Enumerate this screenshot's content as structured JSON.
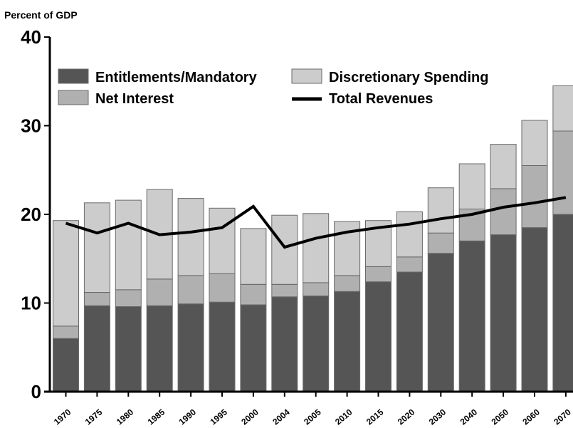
{
  "chart_data": {
    "type": "bar",
    "stacked": true,
    "ylabel": "Percent of  GDP",
    "xlabel": "",
    "title": "",
    "ylim": [
      0,
      40
    ],
    "yticks": [
      0,
      10,
      20,
      30,
      40
    ],
    "grid": false,
    "legend_position": "top-left",
    "categories": [
      "1970",
      "1975",
      "1980",
      "1985",
      "1990",
      "1995",
      "2000",
      "2004",
      "2005",
      "2010",
      "2015",
      "2020",
      "2030",
      "2040",
      "2050",
      "2060",
      "2070"
    ],
    "series": [
      {
        "name": "Entitlements/Mandatory",
        "kind": "bar",
        "color": "#555555",
        "values": [
          6.0,
          9.7,
          9.6,
          9.7,
          9.9,
          10.1,
          9.8,
          10.7,
          10.8,
          11.3,
          12.4,
          13.5,
          15.6,
          17.0,
          17.7,
          18.5,
          20.0
        ]
      },
      {
        "name": "Net Interest",
        "kind": "bar",
        "color": "#b0b0b0",
        "values": [
          1.4,
          1.5,
          1.9,
          3.0,
          3.2,
          3.2,
          2.3,
          1.4,
          1.5,
          1.8,
          1.7,
          1.7,
          2.3,
          3.6,
          5.2,
          7.0,
          9.4
        ]
      },
      {
        "name": "Discretionary Spending",
        "kind": "bar",
        "color": "#cccccc",
        "values": [
          11.9,
          10.1,
          10.1,
          10.1,
          8.7,
          7.4,
          6.3,
          7.8,
          7.8,
          6.1,
          5.2,
          5.1,
          5.1,
          5.1,
          5.0,
          5.1,
          5.1
        ]
      },
      {
        "name": "Total Revenues",
        "kind": "line",
        "color": "#000000",
        "values": [
          19.0,
          17.9,
          19.0,
          17.7,
          18.0,
          18.5,
          20.9,
          16.3,
          17.3,
          18.0,
          18.5,
          18.9,
          19.5,
          20.0,
          20.8,
          21.3,
          21.9
        ]
      }
    ],
    "legend_order": [
      "Entitlements/Mandatory",
      "Discretionary Spending",
      "Net Interest",
      "Total Revenues"
    ]
  }
}
